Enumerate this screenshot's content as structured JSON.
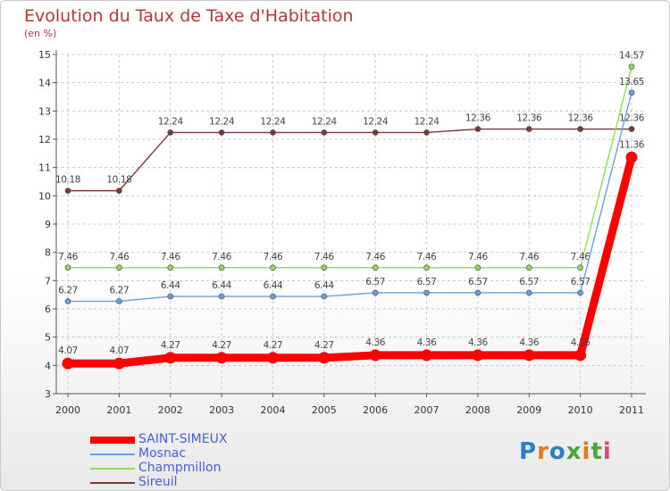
{
  "chart_data": {
    "type": "line",
    "title": "Evolution du Taux de Taxe d'Habitation",
    "subtitle": "(en %)",
    "x": [
      "2000",
      "2001",
      "2002",
      "2003",
      "2004",
      "2005",
      "2006",
      "2007",
      "2008",
      "2009",
      "2010",
      "2011"
    ],
    "ylim": [
      3,
      15
    ],
    "yticks": [
      3,
      4,
      5,
      6,
      7,
      8,
      9,
      10,
      11,
      12,
      13,
      14,
      15
    ],
    "grid": true,
    "legend_position": "bottom-left",
    "series": [
      {
        "name": "SAINT-SIMEUX",
        "color": "#ff0000",
        "values": [
          4.07,
          4.07,
          4.27,
          4.27,
          4.27,
          4.27,
          4.36,
          4.36,
          4.36,
          4.36,
          4.36,
          11.36
        ],
        "labels": [
          "4.07",
          "4.07",
          "4.27",
          "4.27",
          "4.27",
          "4.27",
          "4.36",
          "4.36",
          "4.36",
          "4.36",
          "4.36",
          "11.36"
        ]
      },
      {
        "name": "Mosnac",
        "color": "#6aa0d8",
        "values": [
          6.27,
          6.27,
          6.44,
          6.44,
          6.44,
          6.44,
          6.57,
          6.57,
          6.57,
          6.57,
          6.57,
          13.65
        ],
        "labels": [
          "6.27",
          "6.27",
          "6.44",
          "6.44",
          "6.44",
          "6.44",
          "6.57",
          "6.57",
          "6.57",
          "6.57",
          "6.57",
          "13.65"
        ]
      },
      {
        "name": "Champmillon",
        "color": "#8fdc5a",
        "values": [
          7.46,
          7.46,
          7.46,
          7.46,
          7.46,
          7.46,
          7.46,
          7.46,
          7.46,
          7.46,
          7.46,
          14.57
        ],
        "labels": [
          "7.46",
          "7.46",
          "7.46",
          "7.46",
          "7.46",
          "7.46",
          "7.46",
          "7.46",
          "7.46",
          "7.46",
          "7.46",
          "14.57"
        ]
      },
      {
        "name": "Sireuil",
        "color": "#7a3a3a",
        "values": [
          10.18,
          10.18,
          12.24,
          12.24,
          12.24,
          12.24,
          12.24,
          12.24,
          12.36,
          12.36,
          12.36,
          12.36
        ],
        "labels": [
          "10.18",
          "10.18",
          "12.24",
          "12.24",
          "12.24",
          "12.24",
          "12.24",
          "12.24",
          "12.36",
          "12.36",
          "12.36",
          "12.36"
        ]
      }
    ]
  },
  "logo": {
    "text": "Proxiti"
  }
}
